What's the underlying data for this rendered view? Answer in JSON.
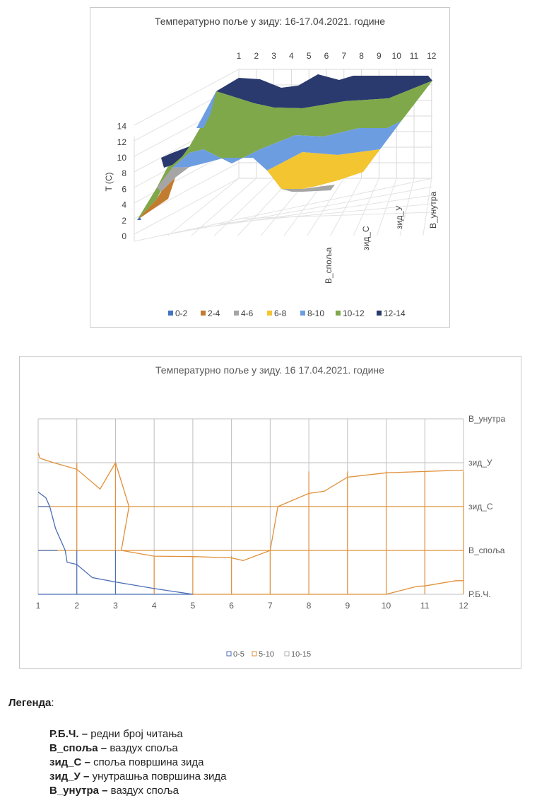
{
  "chart_data": [
    {
      "type": "surface",
      "title": "Температурно поље у зиду: 16-17.04.2021. године",
      "ylabel": "T (C)",
      "z_ticks": [
        "0",
        "2",
        "4",
        "6",
        "8",
        "10",
        "12",
        "14"
      ],
      "zlim": [
        0,
        14
      ],
      "x_categories": [
        "1",
        "2",
        "3",
        "4",
        "5",
        "6",
        "7",
        "8",
        "9",
        "10",
        "11",
        "12"
      ],
      "depth_categories": [
        "В_споља",
        "зид_С",
        "зид_У",
        "В_унутра"
      ],
      "legend": [
        {
          "label": "0-2",
          "color": "#4472c4"
        },
        {
          "label": "2-4",
          "color": "#c27c2f"
        },
        {
          "label": "4-6",
          "color": "#a5a5a5"
        },
        {
          "label": "6-8",
          "color": "#f2c531"
        },
        {
          "label": "8-10",
          "color": "#6d9de1"
        },
        {
          "label": "10-12",
          "color": "#7ea84a"
        },
        {
          "label": "12-14",
          "color": "#2a3a6e"
        }
      ],
      "surface_bands": [
        {
          "range": "2-4",
          "region": "В_споља, readings 1-2"
        },
        {
          "range": "4-6",
          "region": "readings 1-2 and 5-7 near зид_С"
        },
        {
          "range": "6-8",
          "region": "зид_С, readings 5-10"
        },
        {
          "range": "8-10",
          "region": "зид_С / зид_У, readings 2-10"
        },
        {
          "range": "10-12",
          "region": "зид_У, readings 2-12"
        },
        {
          "range": "12-14",
          "region": "В_унутра, readings 4-12"
        }
      ]
    },
    {
      "type": "contour",
      "title": "Температурно поље у зиду. 16 17.04.2021. године",
      "x_ticks": [
        "1",
        "2",
        "3",
        "4",
        "5",
        "6",
        "7",
        "8",
        "9",
        "10",
        "11",
        "12"
      ],
      "y_categories": [
        "Р.Б.Ч.",
        "В_споља",
        "зид_С",
        "зид_У",
        "В_унутра"
      ],
      "xlim": [
        1,
        12
      ],
      "ylim": [
        0,
        4
      ],
      "legend": [
        {
          "label": "0-5",
          "color": "#4a6db5"
        },
        {
          "label": "5-10",
          "color": "#e0903a"
        },
        {
          "label": "10-15",
          "color": "#b0b0b0"
        }
      ],
      "contours": [
        {
          "level": 5,
          "color": "#4a6db5",
          "points": [
            [
              1,
              2.33
            ],
            [
              1.2,
              2.2
            ],
            [
              1.3,
              2.0
            ],
            [
              1.45,
              1.5
            ],
            [
              1.7,
              1.0
            ],
            [
              1.75,
              0.73
            ],
            [
              2.0,
              0.68
            ],
            [
              2.4,
              0.38
            ],
            [
              3,
              0.28
            ],
            [
              4,
              0.13
            ],
            [
              5,
              0
            ]
          ]
        },
        {
          "level": 10,
          "color": "#e0903a",
          "points": [
            [
              1,
              3.22
            ],
            [
              1.05,
              3.1
            ],
            [
              1.4,
              3.0
            ],
            [
              2,
              2.85
            ],
            [
              2.6,
              2.4
            ],
            [
              3.0,
              3.0
            ],
            [
              3.35,
              2.0
            ],
            [
              3.15,
              1.0
            ],
            [
              4,
              0.87
            ],
            [
              5,
              0.86
            ],
            [
              6,
              0.83
            ],
            [
              6.3,
              0.77
            ],
            [
              7,
              1.0
            ],
            [
              7.2,
              2.0
            ],
            [
              8,
              2.3
            ],
            [
              8.4,
              2.35
            ],
            [
              9,
              2.67
            ],
            [
              10,
              2.77
            ],
            [
              11,
              2.8
            ],
            [
              12,
              2.83
            ]
          ]
        },
        {
          "level": 5,
          "color": "#e0903a",
          "points": [
            [
              10,
              0
            ],
            [
              10.8,
              0.18
            ],
            [
              11,
              0.19
            ],
            [
              11.8,
              0.31
            ],
            [
              12,
              0.31
            ]
          ]
        }
      ]
    }
  ],
  "legend_section": {
    "title": "Легенда",
    "items": [
      {
        "term": "Р.Б.Ч.",
        "desc": "редни број читања"
      },
      {
        "term": "В_споља",
        "desc": "ваздух споља"
      },
      {
        "term": "зид_С",
        "desc": "споља површина зида"
      },
      {
        "term": "зид_У",
        "desc": "унутрашња површина зида"
      },
      {
        "term": "В_унутра",
        "desc": "ваздух споља"
      }
    ]
  }
}
